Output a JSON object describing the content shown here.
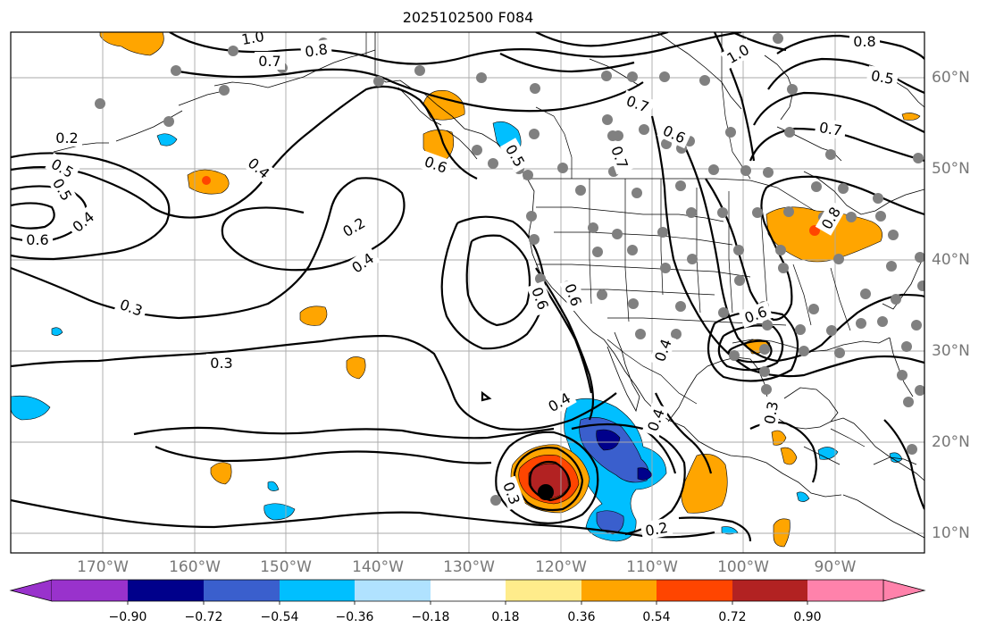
{
  "title": "2025102500 F084",
  "lon_labels": [
    "170°W",
    "160°W",
    "150°W",
    "140°W",
    "130°W",
    "120°W",
    "110°W",
    "100°W",
    "90°W"
  ],
  "lat_labels": [
    "60°N",
    "50°N",
    "40°N",
    "30°N",
    "20°N",
    "10°N"
  ],
  "colorbar": {
    "tick_labels": [
      "−0.90",
      "−0.72",
      "−0.54",
      "−0.36",
      "−0.18",
      "0.18",
      "0.36",
      "0.54",
      "0.72",
      "0.90"
    ],
    "colors": [
      "#9932cc",
      "#00008b",
      "#3a5fcd",
      "#00bfff",
      "#b0e2ff",
      "#ffffff",
      "#ffec8b",
      "#ffa500",
      "#ff4500",
      "#b22222",
      "#ff82ab"
    ]
  },
  "contour_labels": [
    "1.0",
    "0.8",
    "0.7",
    "1.0",
    "0.8",
    "0.5",
    "0.7",
    "0.6",
    "0.7",
    "0.2",
    "0.4",
    "0.5",
    "0.6",
    "0.4",
    "0.6",
    "0.2",
    "0.4",
    "0.6",
    "0.3",
    "0.3",
    "0.7",
    "0.6",
    "0.4",
    "0.3",
    "0.4",
    "0.2",
    "0.3",
    "0.5",
    "0.6",
    "0.8",
    "0.4",
    "0.5"
  ],
  "marker": "cyclone-center"
}
